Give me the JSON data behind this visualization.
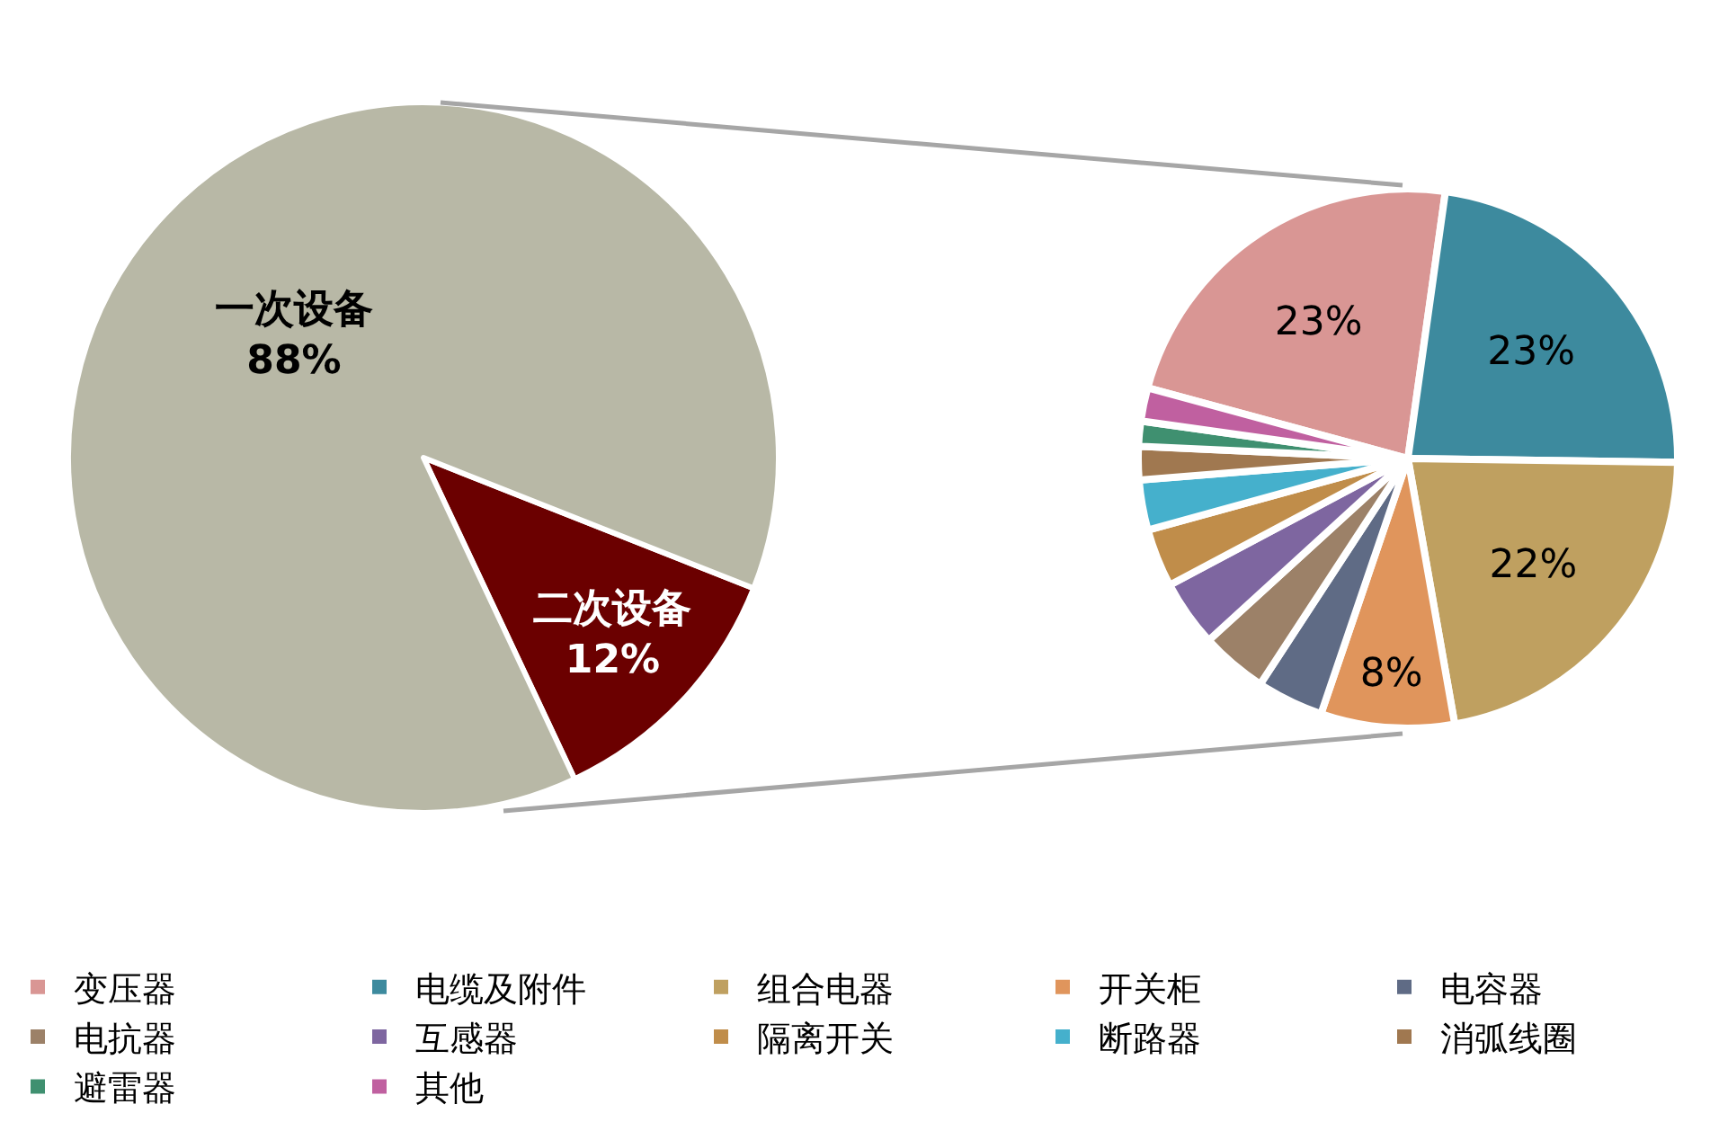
{
  "chart_data": [
    {
      "type": "pie",
      "categories": [
        "二次设备",
        "一次设备"
      ],
      "values": [
        12,
        88
      ],
      "colors": [
        "#6b0000",
        "#b8b8a6"
      ],
      "value_labels": [
        "12%",
        "88%"
      ],
      "legend": false
    },
    {
      "type": "pie",
      "categories": [
        "变压器",
        "电缆及附件",
        "组合电器",
        "开关柜",
        "电容器",
        "电抗器",
        "互感器",
        "隔离开关",
        "断路器",
        "消弧线圈",
        "避雷器",
        "其他"
      ],
      "values": [
        23,
        23,
        22,
        8,
        4,
        4,
        4,
        3.5,
        3,
        2,
        1.5,
        2
      ],
      "colors": [
        "#d99694",
        "#3d8a9e",
        "#bfa060",
        "#e0955c",
        "#5f6b85",
        "#9c8168",
        "#7e66a0",
        "#c08d4a",
        "#45b0cc",
        "#a07850",
        "#3f9070",
        "#c060a0"
      ],
      "value_labels": [
        "23%",
        "23%",
        "22%",
        "8%",
        null,
        null,
        null,
        null,
        null,
        null,
        null,
        null
      ],
      "legend": "bottom"
    }
  ]
}
